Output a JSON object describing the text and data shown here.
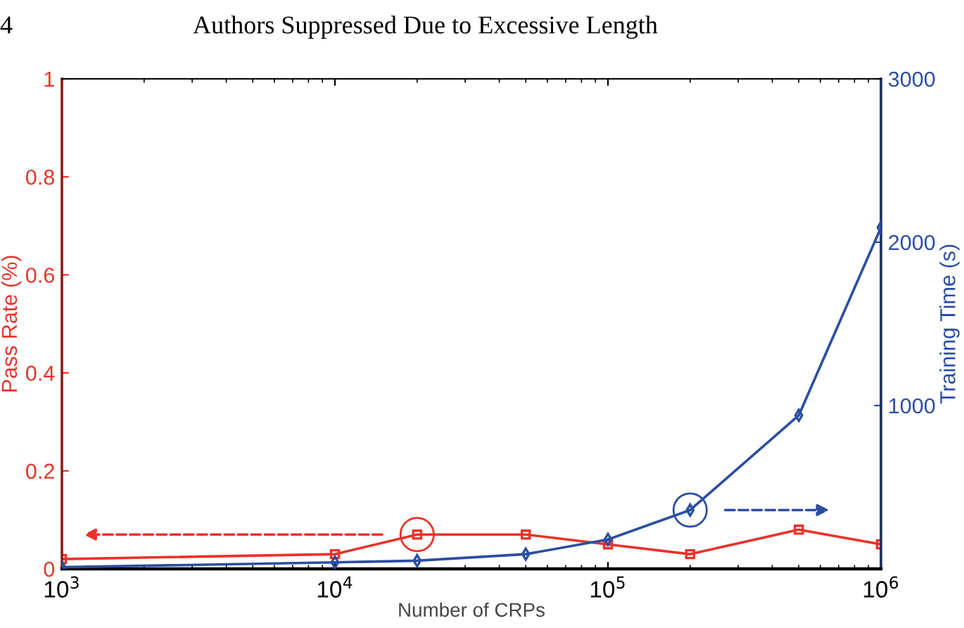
{
  "chart_data": {
    "type": "line",
    "annotations": [
      "4",
      "Authors Suppressed Due to Excessive Length"
    ],
    "xlabel": "Number of CRPs",
    "ylabel": "Pass Rate (%)",
    "y2label": "Training Time (s)",
    "x": [
      1000,
      10000,
      20000,
      50000,
      100000,
      200000,
      500000,
      1000000
    ],
    "log": "x",
    "xlim": [
      1000,
      1000000
    ],
    "xticks": [
      {
        "value": 1000,
        "label": "10$^{3}$"
      },
      {
        "value": 10000,
        "label": "10$^{4}$"
      },
      {
        "value": 100000,
        "label": "10$^{5}$"
      },
      {
        "value": 1000000,
        "label": "10$^{6}$"
      }
    ],
    "ylim": [
      0,
      1
    ],
    "yticks": [
      0,
      0.2,
      0.4,
      0.6,
      0.8,
      1
    ],
    "y2lim": [
      0,
      3000
    ],
    "y2ticks": [
      1000,
      2000,
      3000
    ],
    "grid": false,
    "legend": false,
    "line_style": "solid",
    "series": [
      {
        "color": "#e8332a",
        "marker": "square",
        "values": [
          0.02,
          0.03,
          0.07,
          0.07,
          0.05,
          0.03,
          0.08,
          0.05
        ]
      },
      {
        "color": "#2b4ea2",
        "marker": "diamond",
        "axis": "y2",
        "values": [
          10,
          40,
          50,
          90,
          180,
          360,
          940,
          2090
        ]
      }
    ]
  }
}
